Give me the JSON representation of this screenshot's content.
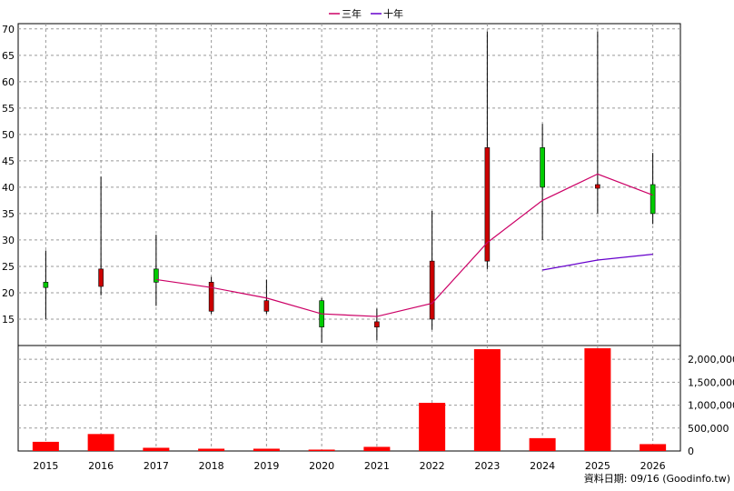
{
  "legend": {
    "items": [
      {
        "label": "三年",
        "color": "#cc0066"
      },
      {
        "label": "十年",
        "color": "#6600cc"
      }
    ]
  },
  "footer": {
    "text": "資料日期: 09/16  (Goodinfo.tw)"
  },
  "chart_data": [
    {
      "type": "candlestick",
      "categories": [
        "2015",
        "2016",
        "2017",
        "2018",
        "2019",
        "2020",
        "2021",
        "2022",
        "2023",
        "2024",
        "2025",
        "2026"
      ],
      "y_ticks": [
        15,
        20,
        25,
        30,
        35,
        40,
        45,
        50,
        55,
        60,
        65,
        70
      ],
      "ylim": [
        10,
        71
      ],
      "grid": true,
      "candles": [
        {
          "open": 21.0,
          "close": 22.0,
          "high": 28.0,
          "low": 15.0
        },
        {
          "open": 24.5,
          "close": 21.2,
          "high": 42.0,
          "low": 19.5
        },
        {
          "open": 22.0,
          "close": 24.5,
          "high": 31.0,
          "low": 17.5
        },
        {
          "open": 22.0,
          "close": 16.5,
          "high": 23.0,
          "low": 16.0
        },
        {
          "open": 18.5,
          "close": 16.5,
          "high": 22.5,
          "low": 16.0
        },
        {
          "open": 13.5,
          "close": 18.5,
          "high": 19.0,
          "low": 10.5
        },
        {
          "open": 14.5,
          "close": 13.5,
          "high": 17.0,
          "low": 11.0
        },
        {
          "open": 26.0,
          "close": 15.0,
          "high": 35.5,
          "low": 13.0
        },
        {
          "open": 47.5,
          "close": 26.0,
          "high": 69.5,
          "low": 24.5
        },
        {
          "open": 40.0,
          "close": 47.5,
          "high": 52.0,
          "low": 30.0
        },
        {
          "open": 40.5,
          "close": 39.8,
          "high": 69.5,
          "low": 35.0
        },
        {
          "open": 35.0,
          "close": 40.5,
          "high": 46.5,
          "low": 33.0
        }
      ],
      "series": [
        {
          "name": "三年",
          "values": [
            null,
            null,
            22.5,
            21.0,
            19.0,
            16.0,
            15.5,
            18.0,
            29.5,
            37.5,
            42.5,
            38.5
          ]
        },
        {
          "name": "十年",
          "values": [
            null,
            null,
            null,
            null,
            null,
            null,
            null,
            null,
            null,
            24.3,
            26.2,
            27.3
          ]
        }
      ]
    },
    {
      "type": "bar",
      "categories": [
        "2015",
        "2016",
        "2017",
        "2018",
        "2019",
        "2020",
        "2021",
        "2022",
        "2023",
        "2024",
        "2025",
        "2026"
      ],
      "values": [
        200000,
        370000,
        70000,
        50000,
        50000,
        30000,
        90000,
        1050000,
        2220000,
        280000,
        2240000,
        150000
      ],
      "y_ticks": [
        0,
        500000,
        1000000,
        1500000,
        2000000
      ],
      "y_tick_labels": [
        "0",
        "500,000",
        "1,000,000",
        "1,500,000",
        "2,000,000"
      ],
      "ylim": [
        0,
        2300000
      ],
      "color": "#ff0000",
      "grid": true
    }
  ]
}
